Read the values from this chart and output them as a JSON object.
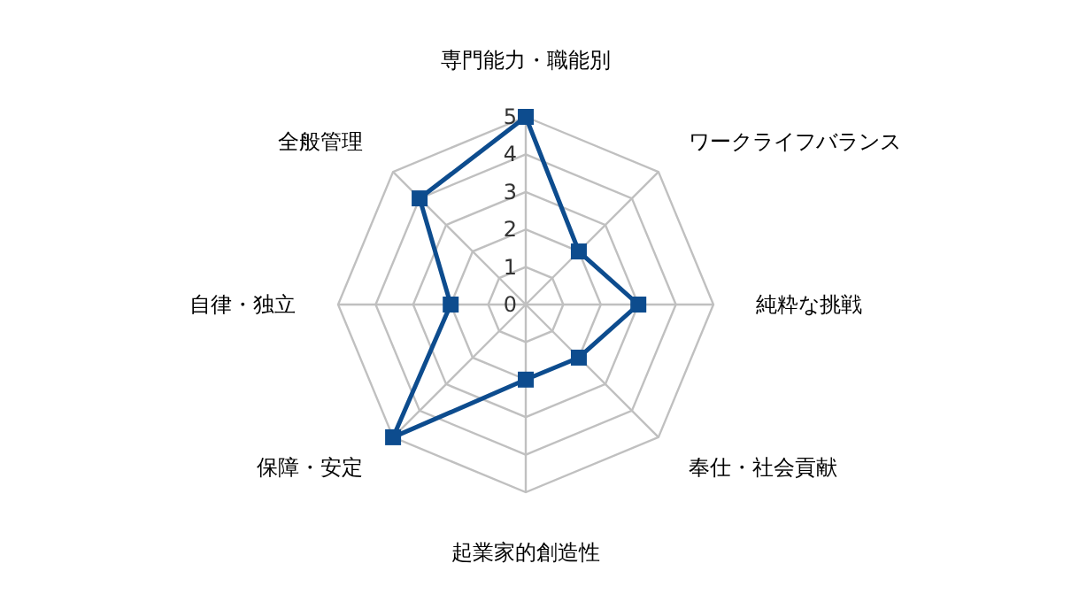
{
  "chart_data": {
    "type": "radar",
    "categories": [
      "専門能力・職能別",
      "ワークライフバランス",
      "純粋な挑戦",
      "奉仕・社会貢献",
      "起業家的創造性",
      "保障・安定",
      "自律・独立",
      "全般管理"
    ],
    "series": [
      {
        "color": "#0d4c8e",
        "values": [
          5,
          2,
          3,
          2,
          2,
          5,
          2,
          4
        ]
      }
    ],
    "ylim": [
      0,
      5
    ],
    "yticks": [
      0,
      1,
      2,
      3,
      4,
      5
    ],
    "grid": true,
    "marker": "square",
    "line_style": "solid"
  }
}
